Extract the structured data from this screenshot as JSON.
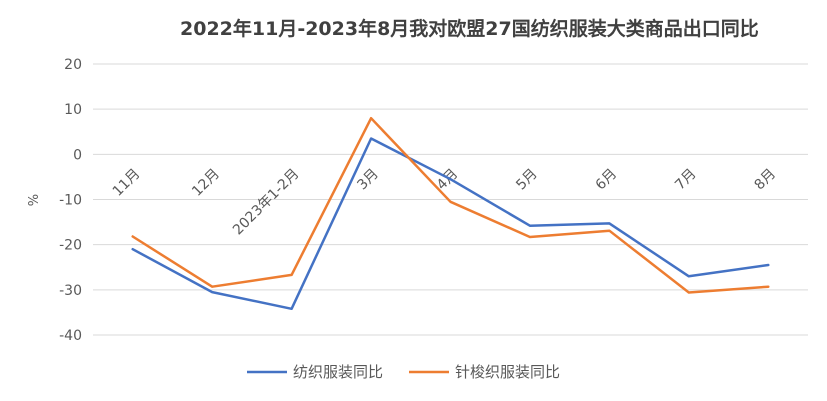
{
  "chart_data": {
    "type": "line",
    "title": "2022年11月-2023年8月我对欧盟27国纺织服装大类商品出口同比",
    "ylabel": "%",
    "xlabel": "",
    "ylim": [
      -40,
      20
    ],
    "yticks": [
      "20",
      "10",
      "0",
      "-10",
      "-20",
      "-30",
      "-40"
    ],
    "grid": true,
    "legend_position": "bottom",
    "categories": [
      "11月",
      "12月",
      "2023年1-2月",
      "3月",
      "4月",
      "5月",
      "6月",
      "7月",
      "8月"
    ],
    "series": [
      {
        "name": "纺织服装同比",
        "color": "#4472C4",
        "values": [
          -21.0,
          -30.5,
          -34.2,
          3.5,
          -5.5,
          -15.8,
          -15.3,
          -27.0,
          -24.5
        ]
      },
      {
        "name": "针梭织服装同比",
        "color": "#ED7D31",
        "values": [
          -18.2,
          -29.3,
          -26.7,
          8.0,
          -10.5,
          -18.3,
          -16.9,
          -30.6,
          -29.3
        ]
      }
    ]
  }
}
